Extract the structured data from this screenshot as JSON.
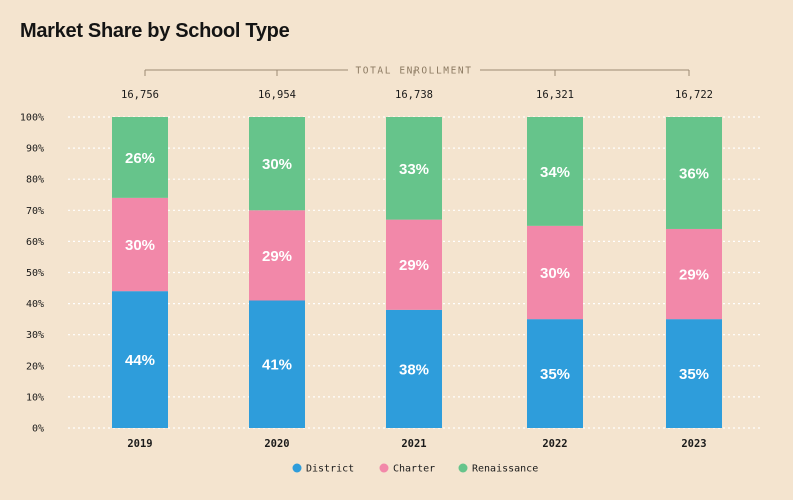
{
  "chart_data": {
    "type": "bar",
    "stacked": true,
    "title": "Market Share by School Type",
    "enrollment_label": "TOTAL ENROLLMENT",
    "categories": [
      "2019",
      "2020",
      "2021",
      "2022",
      "2023"
    ],
    "total_enrollment": [
      "16,756",
      "16,954",
      "16,738",
      "16,321",
      "16,722"
    ],
    "series": [
      {
        "name": "District",
        "color": "#2e9ddb",
        "values": [
          44,
          41,
          38,
          35,
          35
        ]
      },
      {
        "name": "Charter",
        "color": "#f288a9",
        "values": [
          30,
          29,
          29,
          30,
          29
        ]
      },
      {
        "name": "Renaissance",
        "color": "#66c48b",
        "values": [
          26,
          30,
          33,
          34,
          36
        ]
      }
    ],
    "ylim": [
      0,
      100
    ],
    "yticks": [
      "0%",
      "10%",
      "20%",
      "30%",
      "40%",
      "50%",
      "60%",
      "70%",
      "80%",
      "90%",
      "100%"
    ],
    "value_suffix": "%",
    "grid": "horizontal, dashed",
    "legend_position": "bottom-center"
  }
}
